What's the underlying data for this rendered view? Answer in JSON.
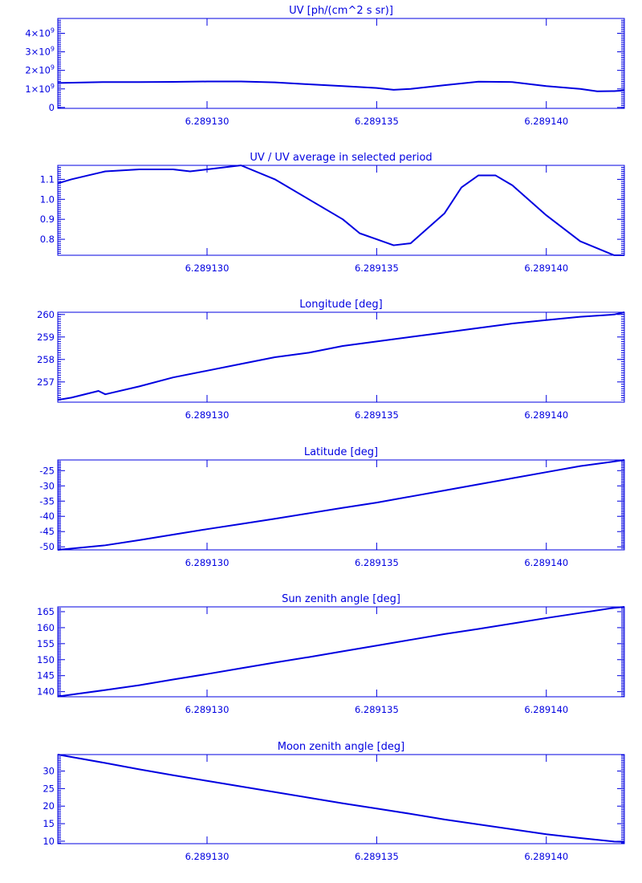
{
  "color": "#0000e0",
  "chart_data": [
    {
      "type": "line",
      "title": "UV [ph/(cm^2 s sr)]",
      "xlim": [
        6.2891256,
        6.2891423
      ],
      "x_ticks": [
        6.28913,
        6.289135,
        6.28914
      ],
      "x_tick_labels": [
        "6.289130",
        "6.289135",
        "6.289140"
      ],
      "ylim": [
        -50000000,
        4800000000
      ],
      "y_ticks": [
        0,
        1000000000,
        2000000000,
        3000000000,
        4000000000
      ],
      "y_tick_labels": [
        {
          "text": "0",
          "exp": ""
        },
        {
          "text": "1×10",
          "exp": "9"
        },
        {
          "text": "2×10",
          "exp": "9"
        },
        {
          "text": "3×10",
          "exp": "9"
        },
        {
          "text": "4×10",
          "exp": "9"
        }
      ],
      "series": [
        {
          "x": [
            6.2891256,
            6.289127,
            6.289128,
            6.289129,
            6.28913,
            6.289131,
            6.289132,
            6.289133,
            6.289134,
            6.289135,
            6.2891355,
            6.289136,
            6.289137,
            6.289138,
            6.289139,
            6.28914,
            6.289141,
            6.2891415,
            6.289142,
            6.2891423
          ],
          "y": [
            1320000000,
            1370000000,
            1370000000,
            1380000000,
            1400000000,
            1400000000,
            1350000000,
            1250000000,
            1150000000,
            1050000000,
            950000000,
            1000000000,
            1200000000,
            1390000000,
            1370000000,
            1150000000,
            1000000000,
            870000000,
            880000000,
            920000000
          ]
        }
      ]
    },
    {
      "type": "line",
      "title": "UV / UV average in selected period",
      "xlim": [
        6.2891256,
        6.2891423
      ],
      "x_ticks": [
        6.28913,
        6.289135,
        6.28914
      ],
      "x_tick_labels": [
        "6.289130",
        "6.289135",
        "6.289140"
      ],
      "ylim": [
        0.72,
        1.17
      ],
      "y_ticks": [
        0.8,
        0.9,
        1.0,
        1.1
      ],
      "y_tick_labels": [
        {
          "text": "0.8"
        },
        {
          "text": "0.9"
        },
        {
          "text": "1.0"
        },
        {
          "text": "1.1"
        }
      ],
      "series": [
        {
          "x": [
            6.2891256,
            6.289126,
            6.2891265,
            6.289127,
            6.289128,
            6.289129,
            6.2891295,
            6.28913,
            6.2891305,
            6.289131,
            6.289132,
            6.289133,
            6.289134,
            6.2891345,
            6.289135,
            6.2891355,
            6.289136,
            6.289137,
            6.2891375,
            6.289138,
            6.2891385,
            6.289139,
            6.28914,
            6.289141,
            6.289142,
            6.2891423
          ],
          "y": [
            1.08,
            1.1,
            1.12,
            1.14,
            1.15,
            1.15,
            1.14,
            1.15,
            1.16,
            1.17,
            1.1,
            1.0,
            0.9,
            0.83,
            0.8,
            0.77,
            0.78,
            0.93,
            1.06,
            1.12,
            1.12,
            1.07,
            0.92,
            0.79,
            0.72,
            0.72
          ]
        }
      ]
    },
    {
      "type": "line",
      "title": "Longitude [deg]",
      "xlim": [
        6.2891256,
        6.2891423
      ],
      "x_ticks": [
        6.28913,
        6.289135,
        6.28914
      ],
      "x_tick_labels": [
        "6.289130",
        "6.289135",
        "6.289140"
      ],
      "ylim": [
        256.1,
        260.1
      ],
      "y_ticks": [
        257,
        258,
        259,
        260
      ],
      "y_tick_labels": [
        {
          "text": "257"
        },
        {
          "text": "258"
        },
        {
          "text": "259"
        },
        {
          "text": "260"
        }
      ],
      "series": [
        {
          "x": [
            6.2891256,
            6.289126,
            6.2891268,
            6.289127,
            6.289128,
            6.289129,
            6.28913,
            6.289131,
            6.289132,
            6.289133,
            6.289134,
            6.289135,
            6.289136,
            6.289137,
            6.289138,
            6.289139,
            6.28914,
            6.289141,
            6.289142,
            6.2891423
          ],
          "y": [
            256.2,
            256.3,
            256.6,
            256.45,
            256.8,
            257.2,
            257.5,
            257.8,
            258.1,
            258.3,
            258.6,
            258.8,
            259.0,
            259.2,
            259.4,
            259.6,
            259.75,
            259.9,
            260.0,
            260.1
          ]
        }
      ]
    },
    {
      "type": "line",
      "title": "Latitude [deg]",
      "xlim": [
        6.2891256,
        6.2891423
      ],
      "x_ticks": [
        6.28913,
        6.289135,
        6.28914
      ],
      "x_tick_labels": [
        "6.289130",
        "6.289135",
        "6.289140"
      ],
      "ylim": [
        -51,
        -21.5
      ],
      "y_ticks": [
        -50,
        -45,
        -40,
        -35,
        -30,
        -25
      ],
      "y_tick_labels": [
        {
          "text": "-50"
        },
        {
          "text": "-45"
        },
        {
          "text": "-40"
        },
        {
          "text": "-35"
        },
        {
          "text": "-30"
        },
        {
          "text": "-25"
        }
      ],
      "series": [
        {
          "x": [
            6.2891256,
            6.289127,
            6.289128,
            6.289129,
            6.28913,
            6.289131,
            6.289132,
            6.289133,
            6.289134,
            6.289135,
            6.289136,
            6.289137,
            6.289138,
            6.289139,
            6.28914,
            6.289141,
            6.289142,
            6.2891423
          ],
          "y": [
            -51,
            -49.5,
            -47.8,
            -46,
            -44.2,
            -42.5,
            -40.8,
            -39,
            -37.2,
            -35.5,
            -33.5,
            -31.5,
            -29.5,
            -27.5,
            -25.5,
            -23.5,
            -22,
            -21.5
          ]
        }
      ]
    },
    {
      "type": "line",
      "title": "Sun zenith angle [deg]",
      "xlim": [
        6.2891256,
        6.2891423
      ],
      "x_ticks": [
        6.28913,
        6.289135,
        6.28914
      ],
      "x_tick_labels": [
        "6.289130",
        "6.289135",
        "6.289140"
      ],
      "ylim": [
        138.4,
        166.5
      ],
      "y_ticks": [
        140,
        145,
        150,
        155,
        160,
        165
      ],
      "y_tick_labels": [
        {
          "text": "140"
        },
        {
          "text": "145"
        },
        {
          "text": "150"
        },
        {
          "text": "155"
        },
        {
          "text": "160"
        },
        {
          "text": "165"
        }
      ],
      "series": [
        {
          "x": [
            6.2891256,
            6.289127,
            6.289128,
            6.289129,
            6.28913,
            6.289131,
            6.289132,
            6.289133,
            6.289134,
            6.289135,
            6.289136,
            6.289137,
            6.289138,
            6.289139,
            6.28914,
            6.289141,
            6.289142,
            6.2891423
          ],
          "y": [
            138.5,
            140.5,
            142,
            143.8,
            145.5,
            147.3,
            149.1,
            150.8,
            152.6,
            154.4,
            156.2,
            158,
            159.6,
            161.3,
            163,
            164.6,
            166.2,
            166.5
          ]
        }
      ]
    },
    {
      "type": "line",
      "title": "Moon zenith angle [deg]",
      "xlim": [
        6.2891256,
        6.2891423
      ],
      "x_ticks": [
        6.28913,
        6.289135,
        6.28914
      ],
      "x_tick_labels": [
        "6.289130",
        "6.289135",
        "6.289140"
      ],
      "ylim": [
        9.3,
        34.7
      ],
      "y_ticks": [
        10,
        15,
        20,
        25,
        30
      ],
      "y_tick_labels": [
        {
          "text": "10"
        },
        {
          "text": "15"
        },
        {
          "text": "20"
        },
        {
          "text": "25"
        },
        {
          "text": "30"
        }
      ],
      "series": [
        {
          "x": [
            6.2891256,
            6.289127,
            6.289128,
            6.289129,
            6.28913,
            6.289131,
            6.289132,
            6.289133,
            6.289134,
            6.289135,
            6.289136,
            6.289137,
            6.289138,
            6.289139,
            6.28914,
            6.289141,
            6.289142,
            6.2891423
          ],
          "y": [
            34.7,
            32.3,
            30.5,
            28.8,
            27.2,
            25.6,
            24.0,
            22.4,
            20.8,
            19.3,
            17.8,
            16.2,
            14.8,
            13.4,
            12.0,
            10.9,
            9.9,
            9.8
          ]
        }
      ]
    }
  ]
}
